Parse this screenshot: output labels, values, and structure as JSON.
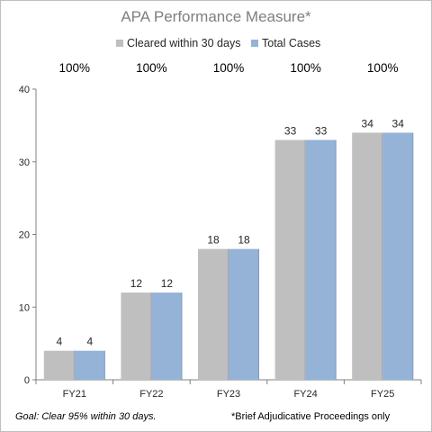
{
  "chart_data": {
    "type": "bar",
    "title": "APA Performance Measure*",
    "categories": [
      "FY21",
      "FY22",
      "FY23",
      "FY24",
      "FY25"
    ],
    "series": [
      {
        "name": "Cleared within 30 days",
        "color": "#bfbfbf",
        "values": [
          4,
          12,
          18,
          33,
          34
        ]
      },
      {
        "name": "Total Cases",
        "color": "#95b3d7",
        "values": [
          4,
          12,
          18,
          33,
          34
        ]
      }
    ],
    "percent_labels": [
      "100%",
      "100%",
      "100%",
      "100%",
      "100%"
    ],
    "ylim": [
      0,
      40
    ],
    "yticks": [
      0,
      10,
      20,
      30,
      40
    ],
    "xlabel": "",
    "ylabel": "",
    "grid": false,
    "legend_position": "top-center"
  },
  "footer": {
    "goal": "Goal:  Clear 95% within 30 days.",
    "note": "*Brief Adjudicative Proceedings only"
  }
}
